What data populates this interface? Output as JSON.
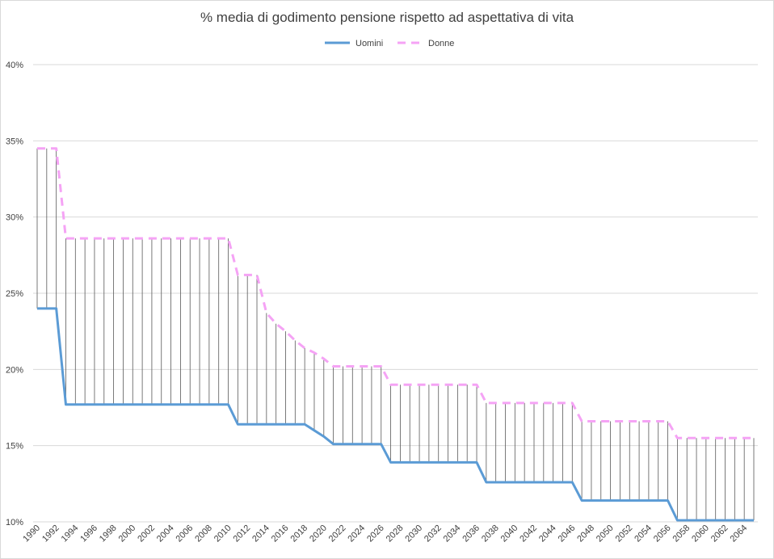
{
  "chart_data": {
    "type": "line",
    "title": "% media di godimento pensione rispetto ad aspettativa di vita",
    "xlabel": "",
    "ylabel": "",
    "ylim": [
      10,
      40
    ],
    "y_ticks": [
      10,
      15,
      20,
      25,
      30,
      35,
      40
    ],
    "y_tick_labels": [
      "10%",
      "15%",
      "20%",
      "25%",
      "30%",
      "35%",
      "40%"
    ],
    "x_tick_labels": [
      "1990",
      "1992",
      "1994",
      "1996",
      "1998",
      "2000",
      "2002",
      "2004",
      "2006",
      "2008",
      "2010",
      "2012",
      "2014",
      "2016",
      "2018",
      "2020",
      "2022",
      "2024",
      "2026",
      "2028",
      "2030",
      "2032",
      "2034",
      "2036",
      "2038",
      "2040",
      "2042",
      "2044",
      "2046",
      "2048",
      "2050",
      "2052",
      "2054",
      "2056",
      "2058",
      "2060",
      "2062",
      "2064"
    ],
    "grid": true,
    "legend_position": "top",
    "high_low_lines": true,
    "x": [
      1990,
      1991,
      1992,
      1993,
      1994,
      1995,
      1996,
      1997,
      1998,
      1999,
      2000,
      2001,
      2002,
      2003,
      2004,
      2005,
      2006,
      2007,
      2008,
      2009,
      2010,
      2011,
      2012,
      2013,
      2014,
      2015,
      2016,
      2017,
      2018,
      2019,
      2020,
      2021,
      2022,
      2023,
      2024,
      2025,
      2026,
      2027,
      2028,
      2029,
      2030,
      2031,
      2032,
      2033,
      2034,
      2035,
      2036,
      2037,
      2038,
      2039,
      2040,
      2041,
      2042,
      2043,
      2044,
      2045,
      2046,
      2047,
      2048,
      2049,
      2050,
      2051,
      2052,
      2053,
      2054,
      2055,
      2056,
      2057,
      2058,
      2059,
      2060,
      2061,
      2062,
      2063,
      2064,
      2065
    ],
    "series": [
      {
        "name": "Uomini",
        "color": "#5b9bd5",
        "style": "solid",
        "values": [
          24.0,
          24.0,
          24.0,
          17.7,
          17.7,
          17.7,
          17.7,
          17.7,
          17.7,
          17.7,
          17.7,
          17.7,
          17.7,
          17.7,
          17.7,
          17.7,
          17.7,
          17.7,
          17.7,
          17.7,
          17.7,
          16.4,
          16.4,
          16.4,
          16.4,
          16.4,
          16.4,
          16.4,
          16.4,
          16.0,
          15.6,
          15.1,
          15.1,
          15.1,
          15.1,
          15.1,
          15.1,
          13.9,
          13.9,
          13.9,
          13.9,
          13.9,
          13.9,
          13.9,
          13.9,
          13.9,
          13.9,
          12.6,
          12.6,
          12.6,
          12.6,
          12.6,
          12.6,
          12.6,
          12.6,
          12.6,
          12.6,
          11.4,
          11.4,
          11.4,
          11.4,
          11.4,
          11.4,
          11.4,
          11.4,
          11.4,
          11.4,
          10.1,
          10.1,
          10.1,
          10.1,
          10.1,
          10.1,
          10.1,
          10.1,
          10.1
        ]
      },
      {
        "name": "Donne",
        "color": "#f5a3f5",
        "style": "dashed",
        "values": [
          34.5,
          34.5,
          34.5,
          28.6,
          28.6,
          28.6,
          28.6,
          28.6,
          28.6,
          28.6,
          28.6,
          28.6,
          28.6,
          28.6,
          28.6,
          28.6,
          28.6,
          28.6,
          28.6,
          28.6,
          28.6,
          26.2,
          26.2,
          26.2,
          23.7,
          23.0,
          22.5,
          21.9,
          21.4,
          21.1,
          20.7,
          20.2,
          20.2,
          20.2,
          20.2,
          20.2,
          20.2,
          19.0,
          19.0,
          19.0,
          19.0,
          19.0,
          19.0,
          19.0,
          19.0,
          19.0,
          19.0,
          17.8,
          17.8,
          17.8,
          17.8,
          17.8,
          17.8,
          17.8,
          17.8,
          17.8,
          17.8,
          16.6,
          16.6,
          16.6,
          16.6,
          16.6,
          16.6,
          16.6,
          16.6,
          16.6,
          16.6,
          15.5,
          15.5,
          15.5,
          15.5,
          15.5,
          15.5,
          15.5,
          15.5,
          15.5
        ]
      }
    ]
  }
}
